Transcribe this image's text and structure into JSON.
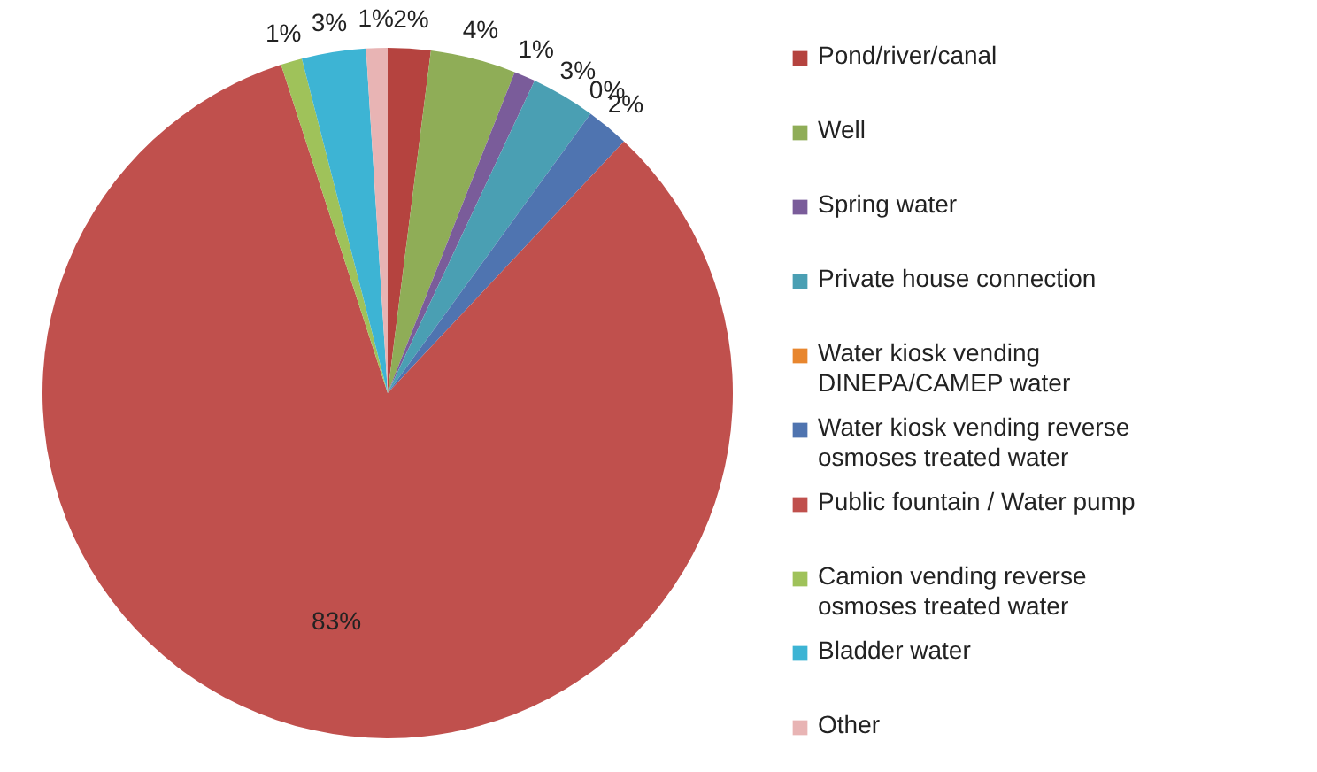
{
  "chart_data": {
    "type": "pie",
    "categories": [
      "Pond/river/canal",
      "Well",
      "Spring water",
      "Private house connection",
      "Water kiosk vending DINEPA/CAMEP water",
      "Water kiosk vending reverse osmoses treated water",
      "Public fountain / Water pump",
      "Camion vending reverse osmoses treated water",
      "Bladder water",
      "Other"
    ],
    "values": [
      2,
      4,
      1,
      3,
      0,
      2,
      83,
      1,
      3,
      1
    ],
    "value_labels": [
      "2%",
      "4%",
      "1%",
      "3%",
      "0%",
      "2%",
      "83%",
      "1%",
      "3%",
      "1%"
    ],
    "colors": [
      "#b5433f",
      "#8fad57",
      "#7a5c9a",
      "#4a9fb3",
      "#e8862e",
      "#4f74b0",
      "#c0504d",
      "#9fc25a",
      "#3db4d4",
      "#e8b4b4"
    ],
    "legend": "right"
  }
}
